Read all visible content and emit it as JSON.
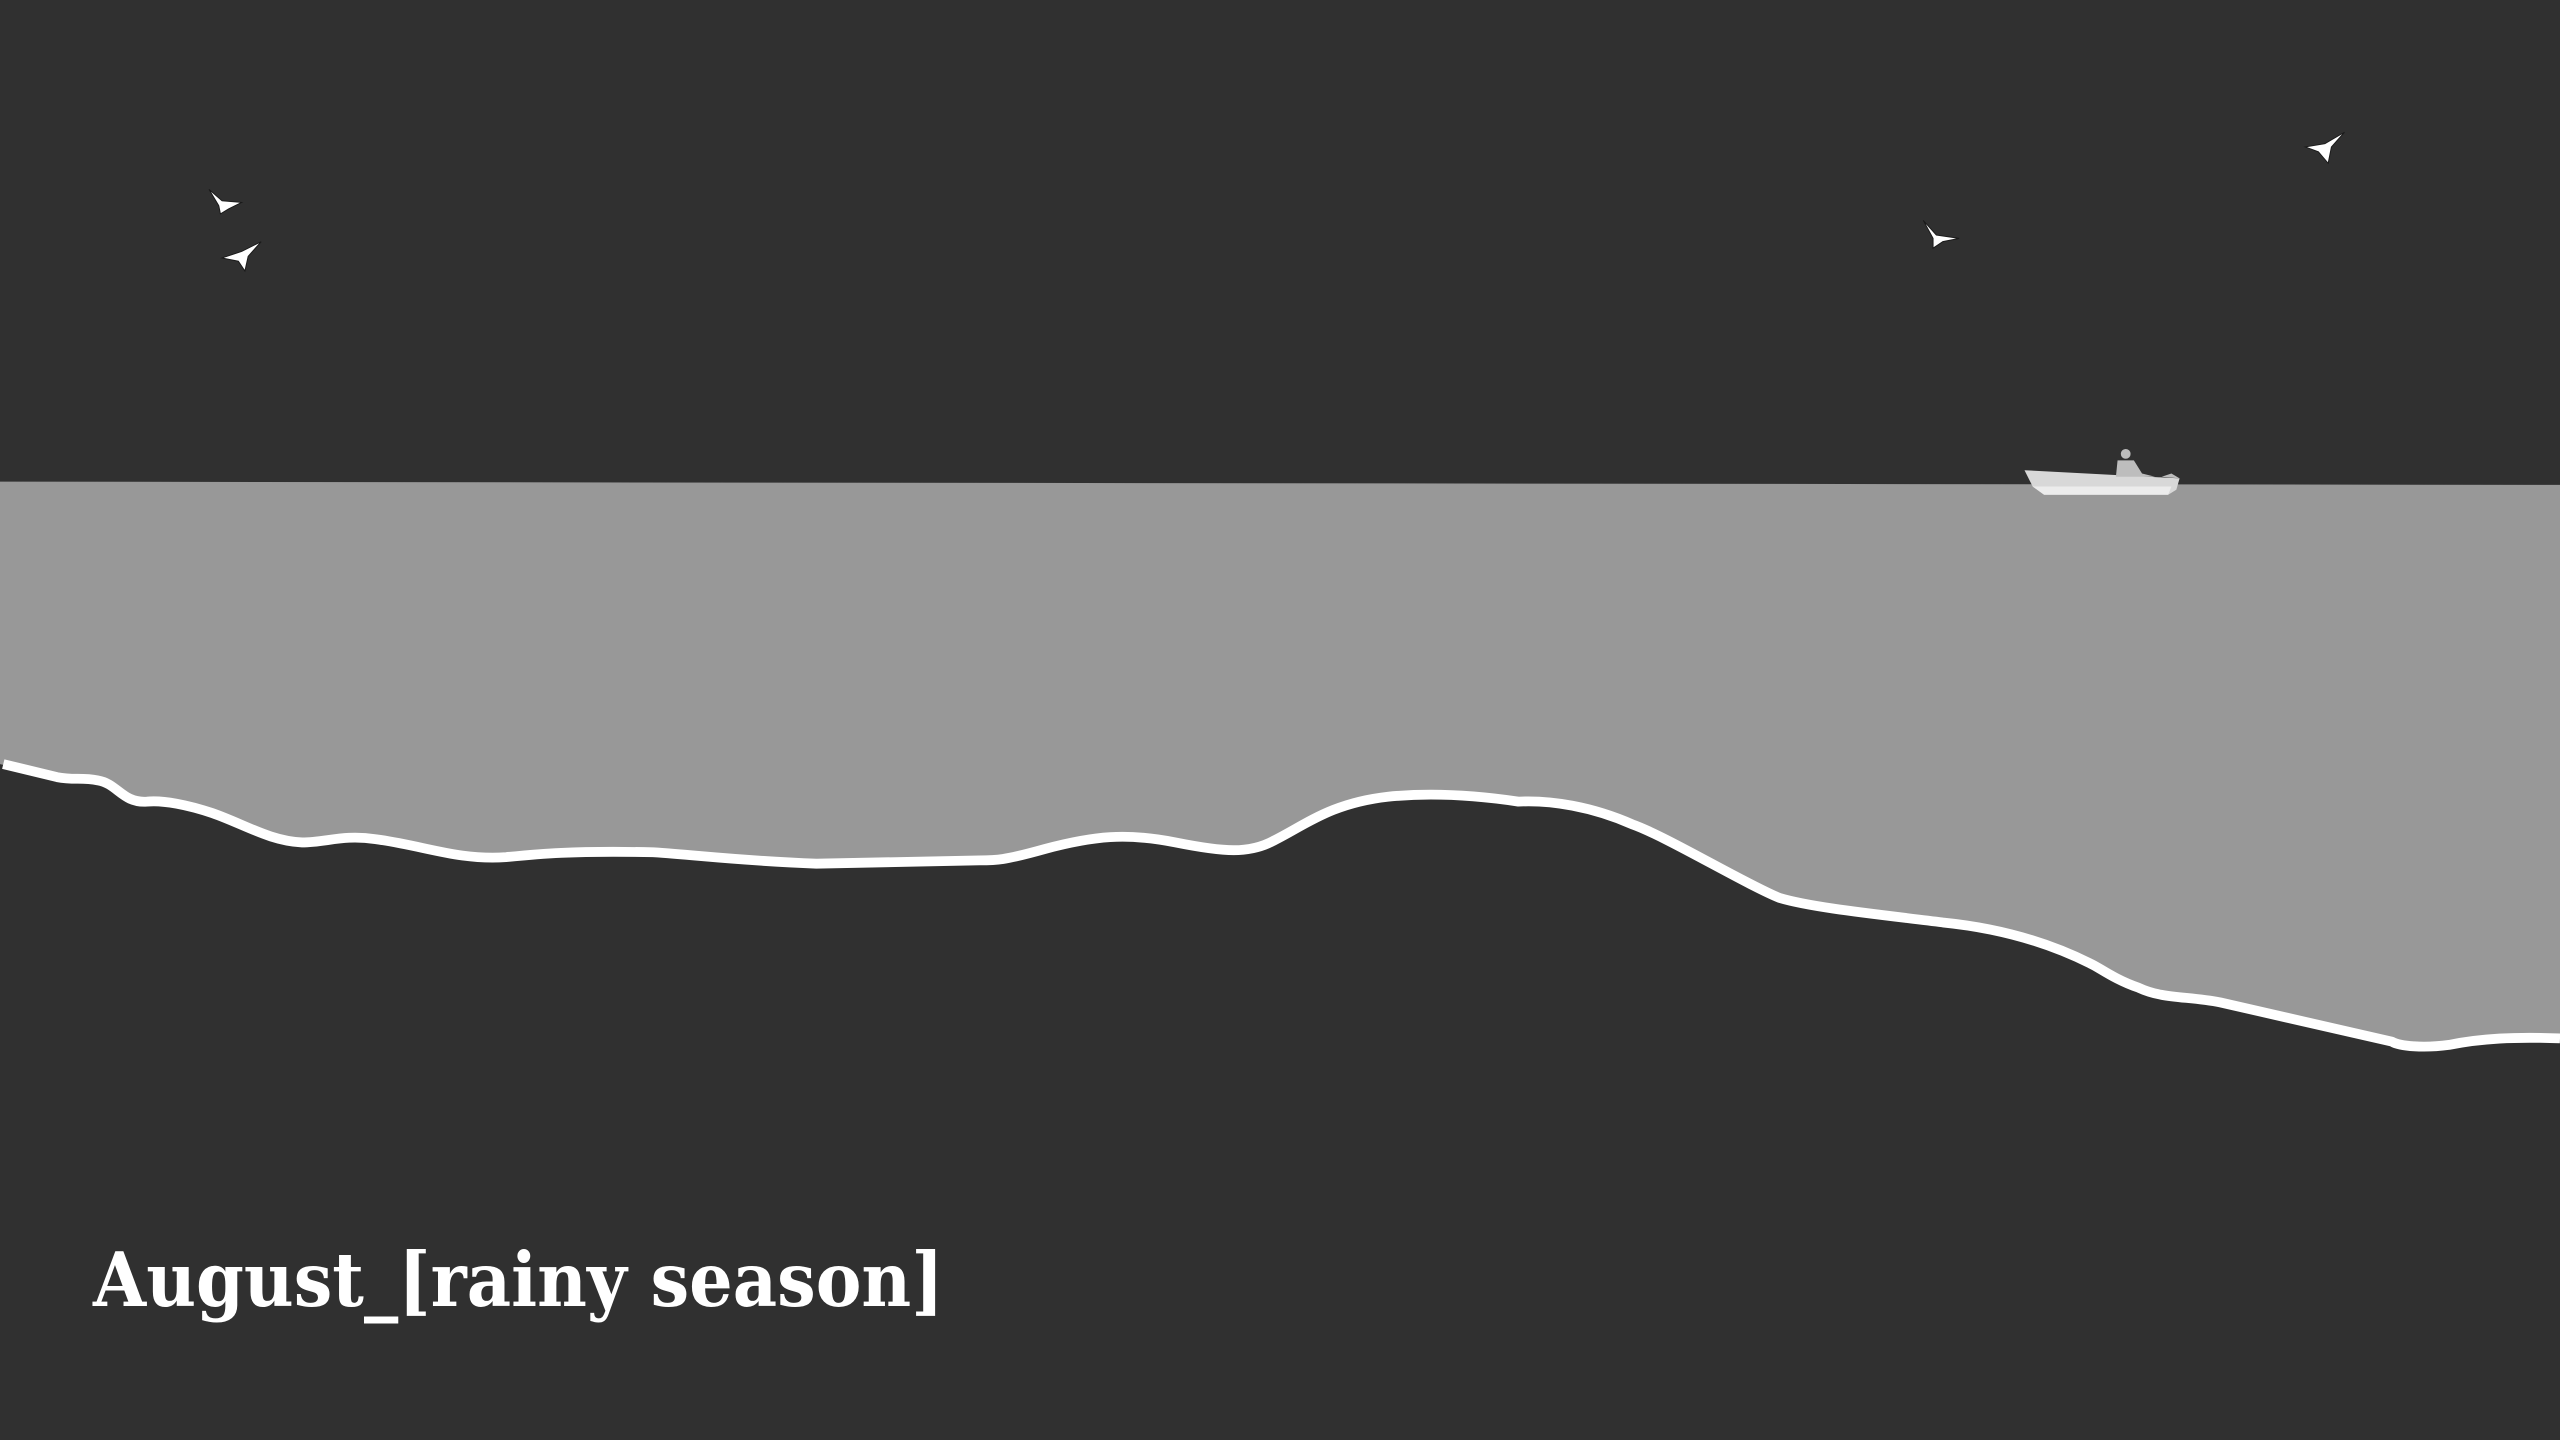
{
  "title": "August_[rainy season]"
}
